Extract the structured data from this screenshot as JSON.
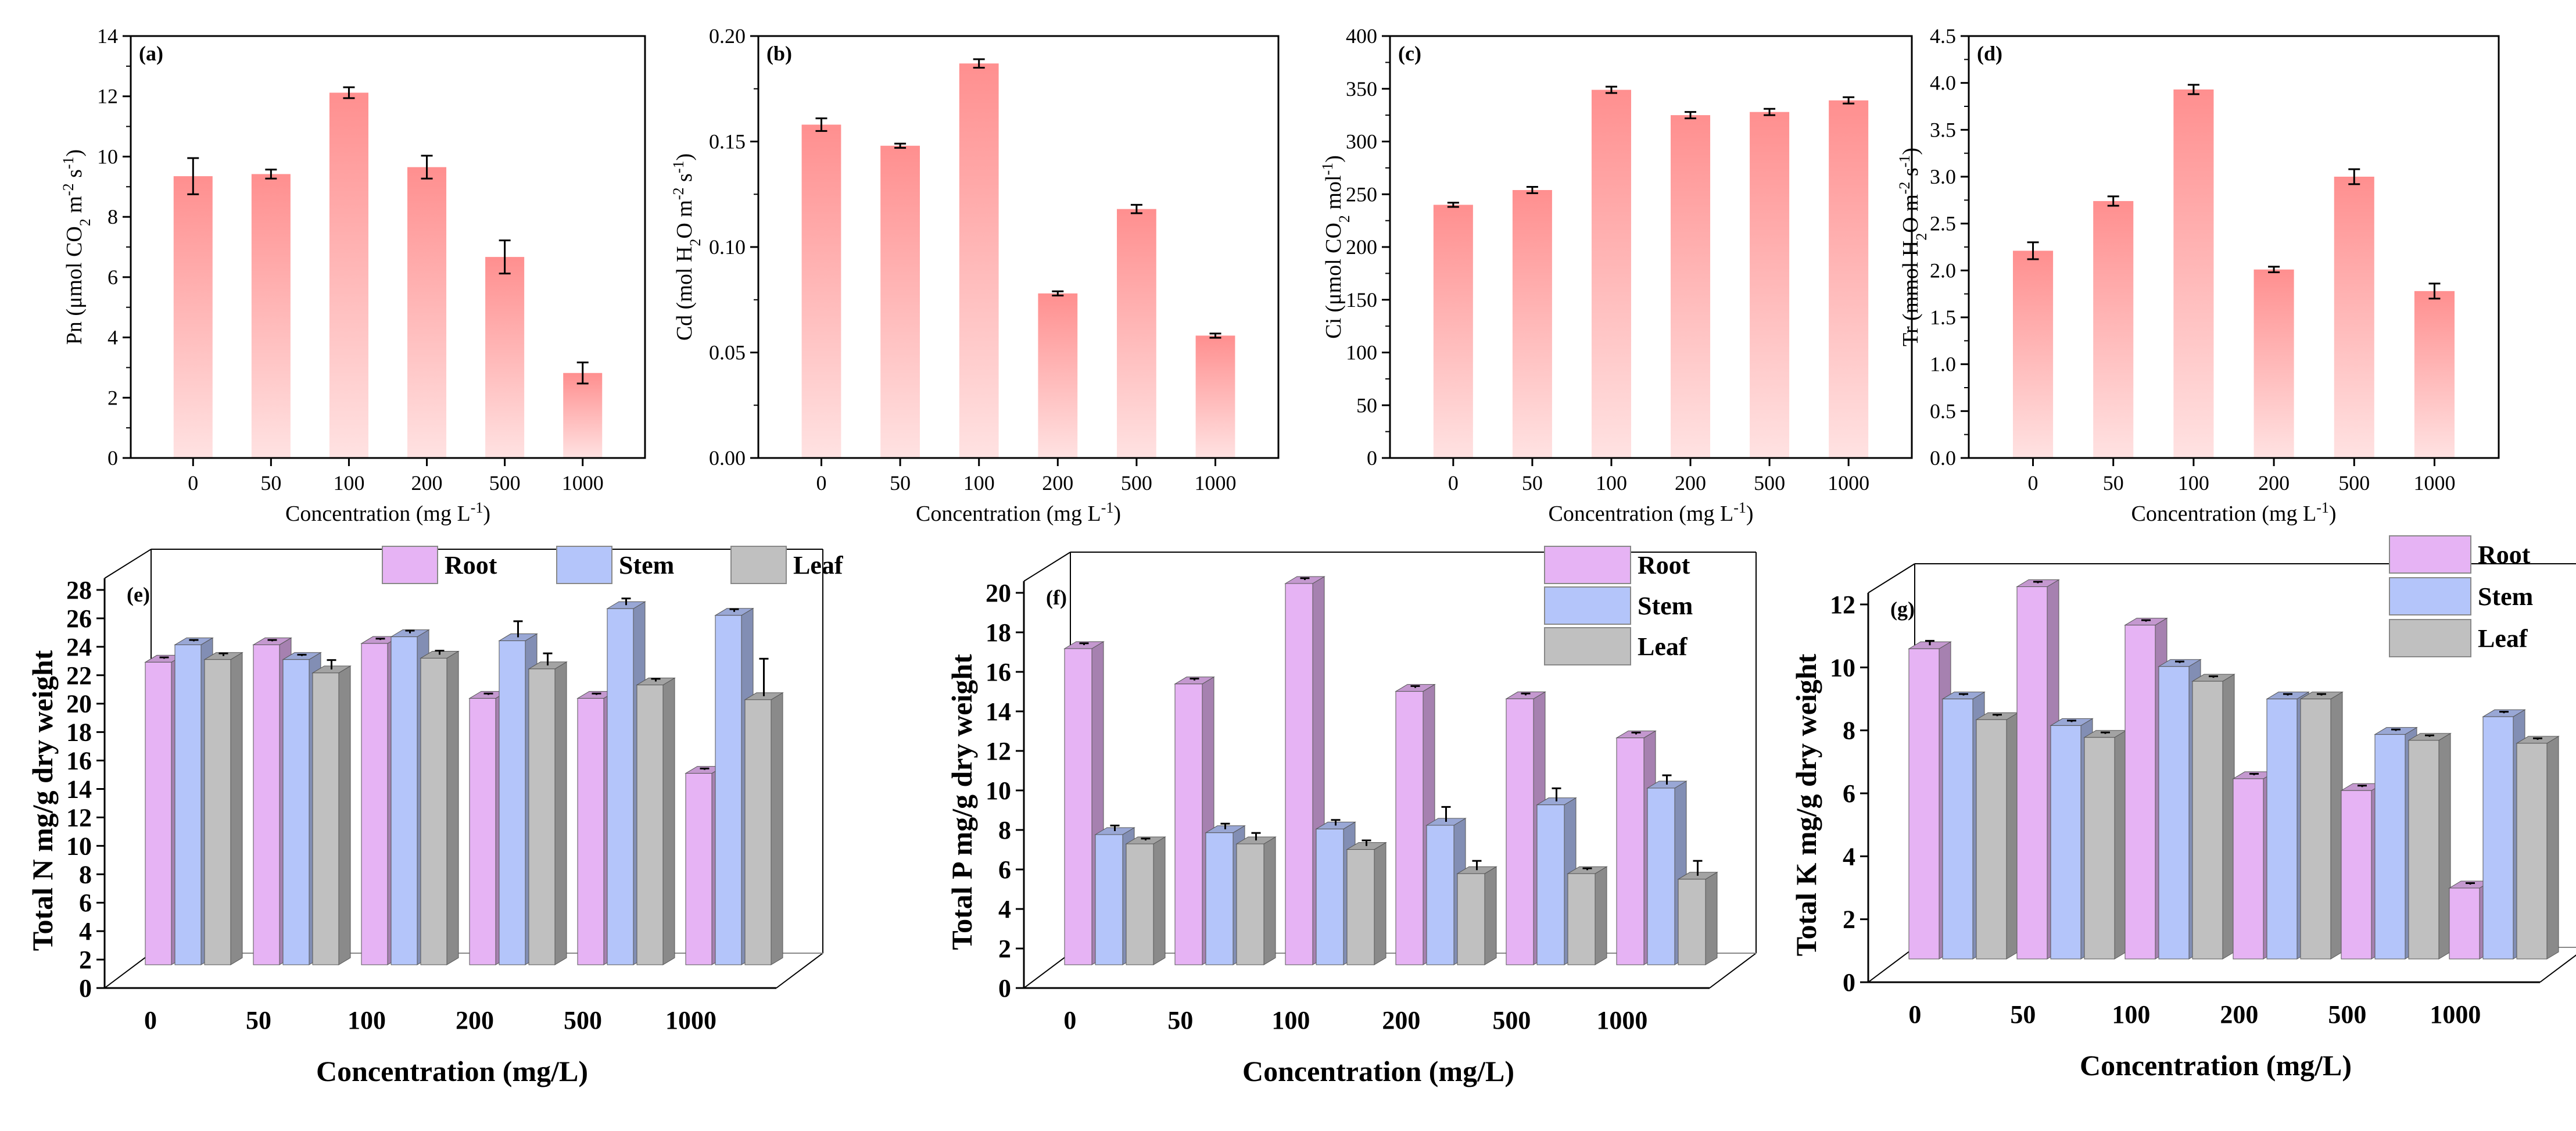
{
  "colors": {
    "bar_top": "#ff8f8f",
    "bar_bottom": "#ffe2e2",
    "root": "#e6b3f4",
    "stem": "#b4c5fa",
    "leaf": "#c0c0c0"
  },
  "chart_data": [
    {
      "id": "a",
      "type": "bar",
      "label": "(a)",
      "categories": [
        "0",
        "50",
        "100",
        "200",
        "500",
        "1000"
      ],
      "values": [
        9.35,
        9.42,
        12.12,
        9.65,
        6.67,
        2.82
      ],
      "errors": [
        0.6,
        0.15,
        0.18,
        0.38,
        0.55,
        0.35
      ],
      "ylim": [
        0,
        14
      ],
      "yticks": [
        "0",
        "2",
        "4",
        "6",
        "8",
        "10",
        "12",
        "14"
      ],
      "xlabel": "Concentration (mg L",
      "xlabel_sup": "-1",
      "xlabel_end": ")",
      "ylabel": [
        {
          "t": "Pn (μmol CO"
        },
        {
          "t": "2",
          "s": "sub"
        },
        {
          "t": " m"
        },
        {
          "t": "-2",
          "s": "sup"
        },
        {
          "t": " s"
        },
        {
          "t": "-1",
          "s": "sup"
        },
        {
          "t": ")"
        }
      ]
    },
    {
      "id": "b",
      "type": "bar",
      "label": "(b)",
      "categories": [
        "0",
        "50",
        "100",
        "200",
        "500",
        "1000"
      ],
      "values": [
        0.158,
        0.148,
        0.187,
        0.078,
        0.118,
        0.058
      ],
      "errors": [
        0.003,
        0.001,
        0.002,
        0.001,
        0.002,
        0.001
      ],
      "ylim": [
        0,
        0.2
      ],
      "yticks": [
        "0.00",
        "0.05",
        "0.10",
        "0.15",
        "0.20"
      ],
      "xlabel": "Concentration (mg L",
      "xlabel_sup": "-1",
      "xlabel_end": ")",
      "ylabel": [
        {
          "t": "Cd (mol H"
        },
        {
          "t": "2",
          "s": "sub"
        },
        {
          "t": "O m"
        },
        {
          "t": "-2",
          "s": "sup"
        },
        {
          "t": " s"
        },
        {
          "t": "-1",
          "s": "sup"
        },
        {
          "t": ")"
        }
      ]
    },
    {
      "id": "c",
      "type": "bar",
      "label": "(c)",
      "categories": [
        "0",
        "50",
        "100",
        "200",
        "500",
        "1000"
      ],
      "values": [
        240,
        254,
        349,
        325,
        328,
        339
      ],
      "errors": [
        2,
        3,
        3,
        3,
        3,
        3
      ],
      "ylim": [
        0,
        400
      ],
      "yticks": [
        "0",
        "50",
        "100",
        "150",
        "200",
        "250",
        "300",
        "350",
        "400"
      ],
      "xlabel": "Concentration (mg L",
      "xlabel_sup": "-1",
      "xlabel_end": ")",
      "ylabel": [
        {
          "t": "Ci (μmol CO"
        },
        {
          "t": "2",
          "s": "sub"
        },
        {
          "t": " mol"
        },
        {
          "t": "-1",
          "s": "sup"
        },
        {
          "t": ")"
        }
      ]
    },
    {
      "id": "d",
      "type": "bar",
      "label": "(d)",
      "categories": [
        "0",
        "50",
        "100",
        "200",
        "500",
        "1000"
      ],
      "values": [
        2.21,
        2.74,
        3.93,
        2.01,
        3.0,
        1.78
      ],
      "errors": [
        0.09,
        0.05,
        0.05,
        0.03,
        0.08,
        0.08
      ],
      "ylim": [
        0,
        4.5
      ],
      "yticks": [
        "0.0",
        "0.5",
        "1.0",
        "1.5",
        "2.0",
        "2.5",
        "3.0",
        "3.5",
        "4.0",
        "4.5"
      ],
      "xlabel": "Concentration (mg L",
      "xlabel_sup": "-1",
      "xlabel_end": ")",
      "ylabel": [
        {
          "t": "Tr (mmol H"
        },
        {
          "t": "2",
          "s": "sub"
        },
        {
          "t": "O m"
        },
        {
          "t": "-2",
          "s": "sup"
        },
        {
          "t": " s"
        },
        {
          "t": "-1",
          "s": "sup"
        },
        {
          "t": ")"
        }
      ]
    },
    {
      "id": "e",
      "type": "bar",
      "label": "(e)",
      "categories": [
        "0",
        "50",
        "100",
        "200",
        "500",
        "1000"
      ],
      "series": [
        {
          "name": "Root",
          "values": [
            22.6,
            23.9,
            24.0,
            19.9,
            19.9,
            14.3
          ],
          "errors": [
            0.1,
            0.1,
            0.1,
            0.1,
            0.1,
            0.1
          ]
        },
        {
          "name": "Stem",
          "values": [
            23.9,
            22.8,
            24.5,
            24.2,
            26.6,
            26.1
          ],
          "errors": [
            0.1,
            0.1,
            0.2,
            1.2,
            0.5,
            0.2
          ]
        },
        {
          "name": "Leaf",
          "values": [
            22.8,
            21.8,
            22.9,
            22.1,
            20.9,
            19.8
          ],
          "errors": [
            0.2,
            0.7,
            0.3,
            0.9,
            0.2,
            2.8
          ]
        }
      ],
      "ylim": [
        0,
        28
      ],
      "yticks": [
        "0",
        "2",
        "4",
        "6",
        "8",
        "10",
        "12",
        "14",
        "16",
        "18",
        "20",
        "22",
        "24",
        "26",
        "28"
      ],
      "xlabel": "Concentration (mg/L)",
      "ylabel": "Total N mg/g dry weight"
    },
    {
      "id": "f",
      "type": "bar",
      "label": "(f)",
      "categories": [
        "0",
        "50",
        "100",
        "200",
        "500",
        "1000"
      ],
      "series": [
        {
          "name": "Root",
          "values": [
            17.0,
            15.1,
            20.5,
            14.7,
            14.3,
            12.2
          ],
          "errors": [
            0.1,
            0.1,
            0.1,
            0.1,
            0.1,
            0.1
          ]
        },
        {
          "name": "Stem",
          "values": [
            7.0,
            7.1,
            7.3,
            7.5,
            8.6,
            9.5
          ],
          "errors": [
            0.3,
            0.3,
            0.3,
            0.8,
            0.7,
            0.5
          ]
        },
        {
          "name": "Leaf",
          "values": [
            6.5,
            6.5,
            6.2,
            4.9,
            4.9,
            4.6
          ],
          "errors": [
            0.1,
            0.4,
            0.3,
            0.5,
            0.1,
            0.8
          ]
        }
      ],
      "ylim": [
        0,
        20
      ],
      "yticks": [
        "0",
        "2",
        "4",
        "6",
        "8",
        "10",
        "12",
        "14",
        "16",
        "18",
        "20"
      ],
      "xlabel": "Concentration (mg/L)",
      "ylabel": "Total P mg/g dry weight"
    },
    {
      "id": "g",
      "type": "bar",
      "label": "(g)",
      "categories": [
        "0",
        "50",
        "100",
        "200",
        "500",
        "1000"
      ],
      "series": [
        {
          "name": "Root",
          "values": [
            10.5,
            12.6,
            11.3,
            6.1,
            5.7,
            2.4
          ],
          "errors": [
            0.15,
            0.05,
            0.05,
            0.05,
            0.05,
            0.05
          ]
        },
        {
          "name": "Stem",
          "values": [
            8.8,
            7.9,
            9.9,
            8.8,
            7.6,
            8.2
          ],
          "errors": [
            0.05,
            0.05,
            0.05,
            0.05,
            0.05,
            0.05
          ]
        },
        {
          "name": "Leaf",
          "values": [
            8.1,
            7.5,
            9.4,
            8.8,
            7.4,
            7.3
          ],
          "errors": [
            0.05,
            0.05,
            0.05,
            0.05,
            0.05,
            0.05
          ]
        }
      ],
      "ylim": [
        0,
        12
      ],
      "yticks": [
        "0",
        "2",
        "4",
        "6",
        "8",
        "10",
        "12"
      ],
      "xlabel": "Concentration (mg/L)",
      "ylabel": "Total K mg/g dry weight"
    }
  ]
}
